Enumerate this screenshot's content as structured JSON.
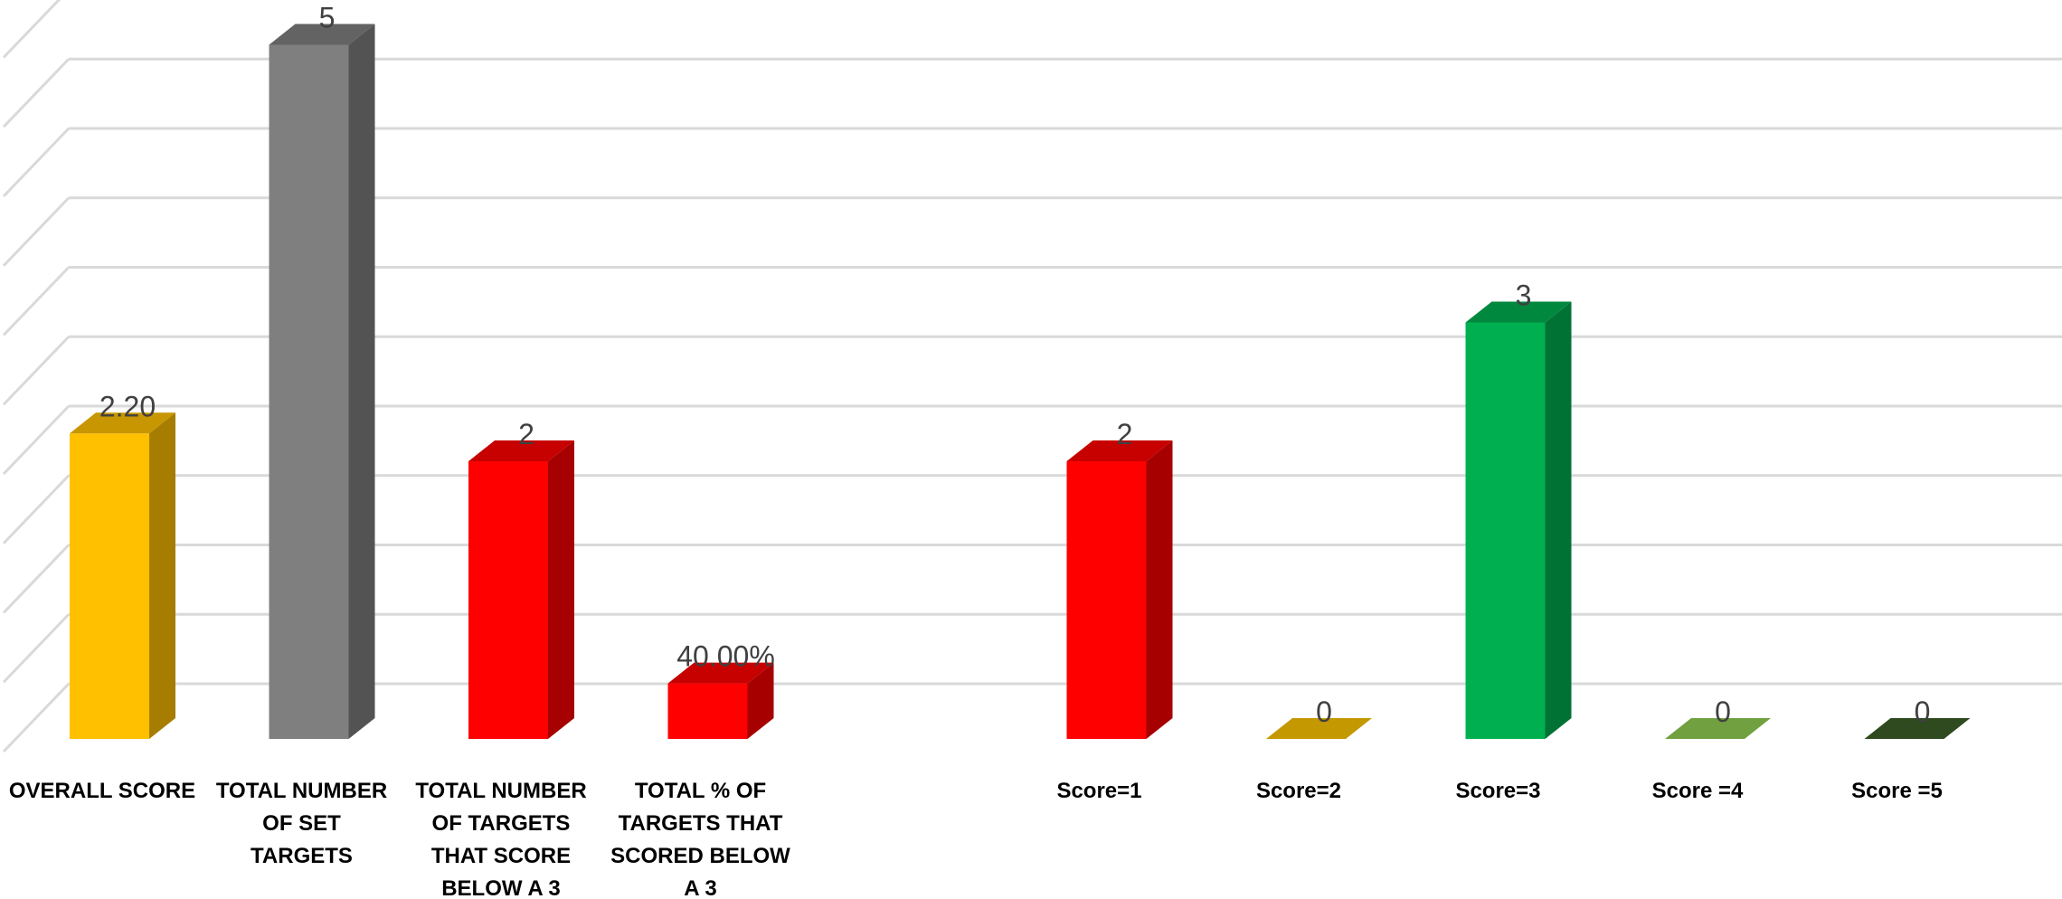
{
  "chart_data": {
    "type": "bar",
    "three_d": true,
    "grid": true,
    "legend": "none",
    "ylim": [
      0,
      5.25
    ],
    "categories": [
      "OVERALL SCORE",
      "TOTAL NUMBER OF SET TARGETS",
      "TOTAL NUMBER OF TARGETS THAT SCORE BELOW A 3",
      "TOTAL % OF TARGETS THAT SCORED BELOW A 3",
      "",
      "Score=1",
      "Score=2",
      "Score=3",
      "Score =4",
      "Score =5"
    ],
    "category_lines": [
      [
        "OVERALL SCORE"
      ],
      [
        "TOTAL NUMBER",
        "OF SET",
        "TARGETS"
      ],
      [
        "TOTAL NUMBER",
        "OF TARGETS",
        "THAT SCORE",
        "BELOW A 3"
      ],
      [
        "TOTAL % OF",
        "TARGETS THAT",
        "SCORED BELOW",
        "A 3"
      ],
      [],
      [
        "Score=1"
      ],
      [
        "Score=2"
      ],
      [
        "Score=3"
      ],
      [
        "Score =4"
      ],
      [
        "Score =5"
      ]
    ],
    "values": [
      2.2,
      5,
      2,
      0.4,
      null,
      2,
      0,
      3,
      0,
      0
    ],
    "value_labels": [
      "2.20",
      "5",
      "2",
      "40.00%",
      "",
      "2",
      "0",
      "3",
      "0",
      "0"
    ],
    "colors": [
      "#FFC000",
      "#7F7F7F",
      "#FF0000",
      "#FF0000",
      "",
      "#FF0000",
      "#C49800",
      "#00B050",
      "#70A040",
      "#2E4A1E"
    ]
  }
}
